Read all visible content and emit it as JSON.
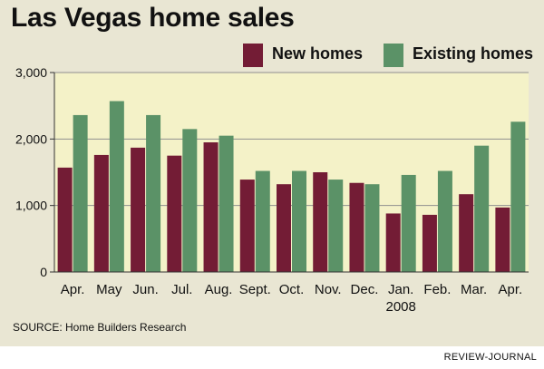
{
  "header": {
    "title": "Las Vegas home sales"
  },
  "footer": {
    "source": "SOURCE: Home Builders Research",
    "credit": "REVIEW-JOURNAL"
  },
  "colors": {
    "background": "#e9e6d3",
    "plot_area": "#f4f2c8",
    "new_homes": "#731c35",
    "existing_homes": "#5b9267"
  },
  "chart_data": {
    "type": "bar",
    "title": "Las Vegas home sales",
    "xlabel": "",
    "ylabel": "",
    "categories": [
      "Apr.",
      "May",
      "Jun.",
      "Jul.",
      "Aug.",
      "Sept.",
      "Oct.",
      "Nov.",
      "Dec.",
      "Jan.",
      "Feb.",
      "Mar.",
      "Apr."
    ],
    "category_sublabels": [
      "",
      "",
      "",
      "",
      "",
      "",
      "",
      "",
      "",
      "2008",
      "",
      "",
      ""
    ],
    "series": [
      {
        "name": "New homes",
        "color": "#731c35",
        "values": [
          1570,
          1760,
          1870,
          1750,
          1950,
          1390,
          1320,
          1500,
          1340,
          880,
          860,
          1170,
          970
        ]
      },
      {
        "name": "Existing homes",
        "color": "#5b9267",
        "values": [
          2360,
          2570,
          2360,
          2150,
          2050,
          1520,
          1520,
          1390,
          1320,
          1460,
          1520,
          1900,
          2260
        ]
      }
    ],
    "ylim": [
      0,
      3000
    ],
    "yticks": [
      0,
      1000,
      2000,
      3000
    ],
    "ytick_labels": [
      "0",
      "1,000",
      "2,000",
      "3,000"
    ],
    "grid": true,
    "legend": "top-right"
  }
}
